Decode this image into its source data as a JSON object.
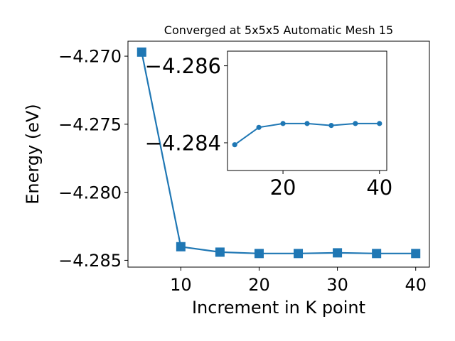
{
  "chart_data": [
    {
      "type": "line",
      "title": "Converged at 5x5x5 Automatic Mesh 15",
      "xlabel": "Increment in K point",
      "ylabel": "Energy (eV)",
      "x": [
        5,
        10,
        15,
        20,
        25,
        30,
        35,
        40
      ],
      "series": [
        {
          "values": [
            -4.2697,
            -4.284,
            -4.2844,
            -4.2845,
            -4.2845,
            -4.28445,
            -4.2845,
            -4.2845
          ]
        }
      ],
      "xlim": [
        3.25,
        41.75
      ],
      "ylim": [
        -4.2855,
        -4.2689
      ],
      "xticks": [
        10,
        20,
        30,
        40
      ],
      "xtick_labels": [
        "10",
        "20",
        "30",
        "40"
      ],
      "yticks": [
        -4.27,
        -4.275,
        -4.28,
        -4.285
      ],
      "ytick_labels": [
        "−4.270",
        "−4.275",
        "−4.280",
        "−4.285"
      ],
      "marker": "square",
      "color": "#1f77b4",
      "grid": false
    },
    {
      "type": "line",
      "title": "",
      "xlabel": "",
      "ylabel": "",
      "x": [
        10,
        15,
        20,
        25,
        30,
        35,
        40
      ],
      "series": [
        {
          "values": [
            -4.28395,
            -4.2844,
            -4.2845,
            -4.2845,
            -4.28445,
            -4.2845,
            -4.2845
          ]
        }
      ],
      "xlim": [
        8.5,
        41.5
      ],
      "ylim": [
        -4.28328,
        -4.28638
      ],
      "xticks": [
        20,
        40
      ],
      "xtick_labels": [
        "20",
        "40"
      ],
      "yticks": [
        -4.286,
        -4.284
      ],
      "ytick_labels": [
        "−4.286",
        "−4.284"
      ],
      "marker": "circle",
      "color": "#1f77b4",
      "grid": false
    }
  ]
}
